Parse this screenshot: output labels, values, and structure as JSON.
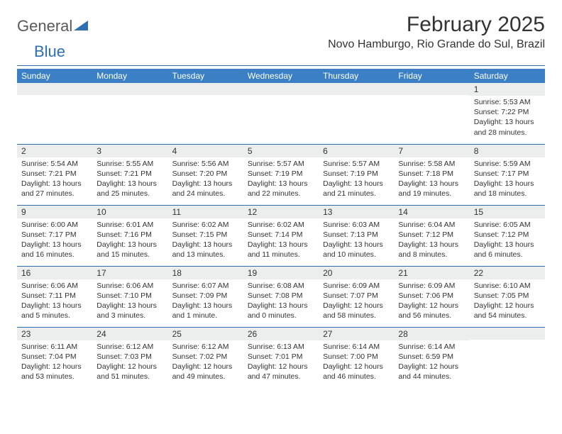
{
  "logo": {
    "general": "General",
    "blue": "Blue"
  },
  "title": "February 2025",
  "location": "Novo Hamburgo, Rio Grande do Sul, Brazil",
  "colors": {
    "header_bg": "#3b7fc4",
    "rule": "#2f6fb0",
    "daynum_bg": "#eceded",
    "text": "#333333",
    "logo_gray": "#5a5a5a",
    "logo_blue": "#2f6fb0"
  },
  "weekdays": [
    "Sunday",
    "Monday",
    "Tuesday",
    "Wednesday",
    "Thursday",
    "Friday",
    "Saturday"
  ],
  "weeks": [
    [
      {
        "n": "",
        "sr": "",
        "ss": "",
        "dl": ""
      },
      {
        "n": "",
        "sr": "",
        "ss": "",
        "dl": ""
      },
      {
        "n": "",
        "sr": "",
        "ss": "",
        "dl": ""
      },
      {
        "n": "",
        "sr": "",
        "ss": "",
        "dl": ""
      },
      {
        "n": "",
        "sr": "",
        "ss": "",
        "dl": ""
      },
      {
        "n": "",
        "sr": "",
        "ss": "",
        "dl": ""
      },
      {
        "n": "1",
        "sr": "Sunrise: 5:53 AM",
        "ss": "Sunset: 7:22 PM",
        "dl": "Daylight: 13 hours and 28 minutes."
      }
    ],
    [
      {
        "n": "2",
        "sr": "Sunrise: 5:54 AM",
        "ss": "Sunset: 7:21 PM",
        "dl": "Daylight: 13 hours and 27 minutes."
      },
      {
        "n": "3",
        "sr": "Sunrise: 5:55 AM",
        "ss": "Sunset: 7:21 PM",
        "dl": "Daylight: 13 hours and 25 minutes."
      },
      {
        "n": "4",
        "sr": "Sunrise: 5:56 AM",
        "ss": "Sunset: 7:20 PM",
        "dl": "Daylight: 13 hours and 24 minutes."
      },
      {
        "n": "5",
        "sr": "Sunrise: 5:57 AM",
        "ss": "Sunset: 7:19 PM",
        "dl": "Daylight: 13 hours and 22 minutes."
      },
      {
        "n": "6",
        "sr": "Sunrise: 5:57 AM",
        "ss": "Sunset: 7:19 PM",
        "dl": "Daylight: 13 hours and 21 minutes."
      },
      {
        "n": "7",
        "sr": "Sunrise: 5:58 AM",
        "ss": "Sunset: 7:18 PM",
        "dl": "Daylight: 13 hours and 19 minutes."
      },
      {
        "n": "8",
        "sr": "Sunrise: 5:59 AM",
        "ss": "Sunset: 7:17 PM",
        "dl": "Daylight: 13 hours and 18 minutes."
      }
    ],
    [
      {
        "n": "9",
        "sr": "Sunrise: 6:00 AM",
        "ss": "Sunset: 7:17 PM",
        "dl": "Daylight: 13 hours and 16 minutes."
      },
      {
        "n": "10",
        "sr": "Sunrise: 6:01 AM",
        "ss": "Sunset: 7:16 PM",
        "dl": "Daylight: 13 hours and 15 minutes."
      },
      {
        "n": "11",
        "sr": "Sunrise: 6:02 AM",
        "ss": "Sunset: 7:15 PM",
        "dl": "Daylight: 13 hours and 13 minutes."
      },
      {
        "n": "12",
        "sr": "Sunrise: 6:02 AM",
        "ss": "Sunset: 7:14 PM",
        "dl": "Daylight: 13 hours and 11 minutes."
      },
      {
        "n": "13",
        "sr": "Sunrise: 6:03 AM",
        "ss": "Sunset: 7:13 PM",
        "dl": "Daylight: 13 hours and 10 minutes."
      },
      {
        "n": "14",
        "sr": "Sunrise: 6:04 AM",
        "ss": "Sunset: 7:12 PM",
        "dl": "Daylight: 13 hours and 8 minutes."
      },
      {
        "n": "15",
        "sr": "Sunrise: 6:05 AM",
        "ss": "Sunset: 7:12 PM",
        "dl": "Daylight: 13 hours and 6 minutes."
      }
    ],
    [
      {
        "n": "16",
        "sr": "Sunrise: 6:06 AM",
        "ss": "Sunset: 7:11 PM",
        "dl": "Daylight: 13 hours and 5 minutes."
      },
      {
        "n": "17",
        "sr": "Sunrise: 6:06 AM",
        "ss": "Sunset: 7:10 PM",
        "dl": "Daylight: 13 hours and 3 minutes."
      },
      {
        "n": "18",
        "sr": "Sunrise: 6:07 AM",
        "ss": "Sunset: 7:09 PM",
        "dl": "Daylight: 13 hours and 1 minute."
      },
      {
        "n": "19",
        "sr": "Sunrise: 6:08 AM",
        "ss": "Sunset: 7:08 PM",
        "dl": "Daylight: 13 hours and 0 minutes."
      },
      {
        "n": "20",
        "sr": "Sunrise: 6:09 AM",
        "ss": "Sunset: 7:07 PM",
        "dl": "Daylight: 12 hours and 58 minutes."
      },
      {
        "n": "21",
        "sr": "Sunrise: 6:09 AM",
        "ss": "Sunset: 7:06 PM",
        "dl": "Daylight: 12 hours and 56 minutes."
      },
      {
        "n": "22",
        "sr": "Sunrise: 6:10 AM",
        "ss": "Sunset: 7:05 PM",
        "dl": "Daylight: 12 hours and 54 minutes."
      }
    ],
    [
      {
        "n": "23",
        "sr": "Sunrise: 6:11 AM",
        "ss": "Sunset: 7:04 PM",
        "dl": "Daylight: 12 hours and 53 minutes."
      },
      {
        "n": "24",
        "sr": "Sunrise: 6:12 AM",
        "ss": "Sunset: 7:03 PM",
        "dl": "Daylight: 12 hours and 51 minutes."
      },
      {
        "n": "25",
        "sr": "Sunrise: 6:12 AM",
        "ss": "Sunset: 7:02 PM",
        "dl": "Daylight: 12 hours and 49 minutes."
      },
      {
        "n": "26",
        "sr": "Sunrise: 6:13 AM",
        "ss": "Sunset: 7:01 PM",
        "dl": "Daylight: 12 hours and 47 minutes."
      },
      {
        "n": "27",
        "sr": "Sunrise: 6:14 AM",
        "ss": "Sunset: 7:00 PM",
        "dl": "Daylight: 12 hours and 46 minutes."
      },
      {
        "n": "28",
        "sr": "Sunrise: 6:14 AM",
        "ss": "Sunset: 6:59 PM",
        "dl": "Daylight: 12 hours and 44 minutes."
      },
      {
        "n": "",
        "sr": "",
        "ss": "",
        "dl": ""
      }
    ]
  ]
}
